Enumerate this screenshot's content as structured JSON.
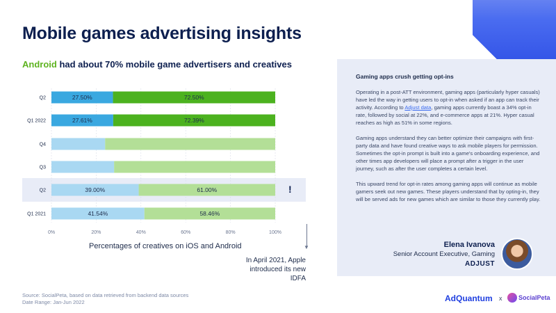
{
  "page": {
    "title": "Mobile games advertising insights",
    "subtitle_accent": "Android",
    "subtitle_rest": " had about 70% mobile game advertisers and creatives",
    "exclaim": "!",
    "axis_title": "Percentages of creatives on iOS and Android",
    "note": "In April 2021, Apple introduced its new IDFA",
    "source_line1": "Source: SocialPeta, based on data retrieved from backend data sources",
    "source_line2": "Date Range: Jan-Jun 2022"
  },
  "panel": {
    "heading": "Gaming apps crush getting opt-ins",
    "p1_before_link": "Operating in a post-ATT environment, gaming apps (particularly hyper casuals) have led the way in getting users to opt-in when asked if an app can track their activity. According to ",
    "p1_link": "Adjust data",
    "p1_after_link": ", gaming apps currently boast a 34% opt-in rate, followed by social at 22%, and e-commerce apps at 21%. Hyper casual reaches as high as 51% in some regions.",
    "p2": "Gaming apps understand they can better optimize their campaigns with first-party data and have found creative ways to ask mobile players for permission. Sometimes the opt-in prompt is built into a game's onboarding experience, and other times app developers will place a prompt after a trigger in the user journey, such as after the user completes a certain level.",
    "p3": "This upward trend for opt-in rates among gaming apps will continue as mobile gamers seek out new games.  These players understand that by opting-in, they will be served ads for new games which are similar to those they currently play."
  },
  "author": {
    "name": "Elena Ivanova",
    "role": "Senior Account Executive, Gaming",
    "company": "ADJUST"
  },
  "brands": {
    "adquantum_bold": "AdQuantum",
    "adquantum_suffix": "",
    "x": "x",
    "socialpeta": "SocialPeta"
  },
  "chart_data": {
    "type": "bar",
    "orientation": "horizontal",
    "stacked": true,
    "normalized": true,
    "categories": [
      "Q2",
      "Q1 2022",
      "Q4",
      "Q3",
      "Q2",
      "Q1 2021"
    ],
    "series": [
      {
        "values": [
          27.5,
          27.61,
          24,
          28,
          39.0,
          41.54
        ],
        "labels": [
          "27.50%",
          "27.61%",
          "",
          "",
          "39.00%",
          "41.54%"
        ]
      },
      {
        "values": [
          72.5,
          72.39,
          76,
          72,
          61.0,
          58.46
        ],
        "labels": [
          "72.50%",
          "72.39%",
          "",
          "",
          "61.00%",
          "58.46%"
        ]
      }
    ],
    "bar_colors": [
      [
        "#3aa8e0",
        "#4cb21f"
      ],
      [
        "#3aa8e0",
        "#4cb21f"
      ],
      [
        "#a9d8f2",
        "#b3df97"
      ],
      [
        "#a9d8f2",
        "#b3df97"
      ],
      [
        "#a9d8f2",
        "#b3df97"
      ],
      [
        "#a9d8f2",
        "#b3df97"
      ]
    ],
    "highlighted_category_index": 4,
    "xticks": [
      "0%",
      "20%",
      "40%",
      "60%",
      "80%",
      "100%"
    ],
    "xlim": [
      0,
      100
    ],
    "xlabel": "Percentages of creatives on iOS and Android",
    "grid": true
  }
}
